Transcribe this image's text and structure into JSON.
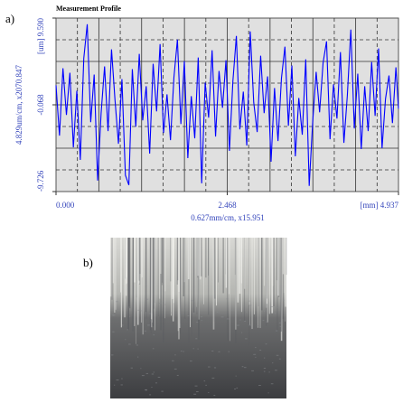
{
  "panel_labels": [
    "a)",
    "b)"
  ],
  "chart_data": {
    "type": "line",
    "title": "Measurement Profile",
    "xlabel": "0.627mm/cm, x15.951",
    "ylabel": "4.829um/cm, x2070.847",
    "x": [
      0,
      0.05,
      0.1,
      0.15,
      0.2,
      0.25,
      0.3,
      0.35,
      0.4,
      0.45,
      0.5,
      0.55,
      0.6,
      0.65,
      0.7,
      0.75,
      0.8,
      0.85,
      0.9,
      0.95,
      1,
      1.05,
      1.1,
      1.15,
      1.2,
      1.25,
      1.3,
      1.35,
      1.4,
      1.45,
      1.5,
      1.55,
      1.6,
      1.65,
      1.7,
      1.75,
      1.8,
      1.85,
      1.9,
      1.95,
      2,
      2.05,
      2.1,
      2.15,
      2.2,
      2.25,
      2.3,
      2.35,
      2.4,
      2.45,
      2.5,
      2.55,
      2.6,
      2.65,
      2.7,
      2.75,
      2.8,
      2.85,
      2.9,
      2.95,
      3,
      3.05,
      3.1,
      3.15,
      3.2,
      3.25,
      3.3,
      3.35,
      3.4,
      3.45,
      3.5,
      3.55,
      3.6,
      3.65,
      3.7,
      3.75,
      3.8,
      3.85,
      3.9,
      3.95,
      4,
      4.05,
      4.1,
      4.15,
      4.2,
      4.25,
      4.3,
      4.35,
      4.4,
      4.45,
      4.5,
      4.55,
      4.6,
      4.65,
      4.7,
      4.75,
      4.8,
      4.85,
      4.9,
      4.937
    ],
    "series": [
      {
        "color": "#0000ff",
        "values": [
          2.1,
          -3.5,
          4.0,
          -1.2,
          3.5,
          -4.8,
          1.5,
          -6.2,
          5.1,
          8.9,
          -2.0,
          3.3,
          -8.5,
          -1.0,
          4.2,
          -3.0,
          6.1,
          0.5,
          -4.4,
          2.8,
          -7.9,
          -9.0,
          3.9,
          -2.5,
          5.6,
          -1.8,
          2.0,
          -5.5,
          4.5,
          -0.8,
          6.7,
          -3.2,
          1.1,
          -4.0,
          3.0,
          7.2,
          -2.2,
          4.8,
          -6.0,
          0.9,
          -3.8,
          5.2,
          -8.8,
          2.4,
          -1.5,
          6.0,
          -3.6,
          3.7,
          -0.4,
          4.9,
          -5.2,
          2.6,
          7.6,
          -2.8,
          1.4,
          -4.6,
          8.1,
          0.2,
          -3.1,
          5.4,
          -1.0,
          3.1,
          -6.4,
          1.8,
          -4.1,
          2.9,
          6.4,
          -2.4,
          4.3,
          -5.8,
          0.7,
          -3.4,
          5.0,
          -9.1,
          -2.0,
          3.6,
          -0.9,
          4.6,
          7.0,
          -3.9,
          2.2,
          -1.6,
          5.8,
          -4.3,
          1.0,
          8.3,
          -2.7,
          3.4,
          -5.0,
          2.0,
          -3.0,
          4.7,
          -1.3,
          6.2,
          -4.9,
          0.6,
          3.2,
          -2.1,
          4.1,
          -0.5
        ]
      }
    ],
    "xlim": [
      0,
      4.937
    ],
    "ylim": [
      -9.726,
      9.59
    ],
    "xticks": [
      {
        "value": 0,
        "label": "0.000"
      },
      2.468,
      {
        "value": 4.937,
        "label": "[mm] 4.937"
      }
    ],
    "yticks": [
      -9.726,
      -0.068,
      {
        "value": 9.59,
        "label": "[um] 9.590"
      }
    ],
    "grid": true
  }
}
